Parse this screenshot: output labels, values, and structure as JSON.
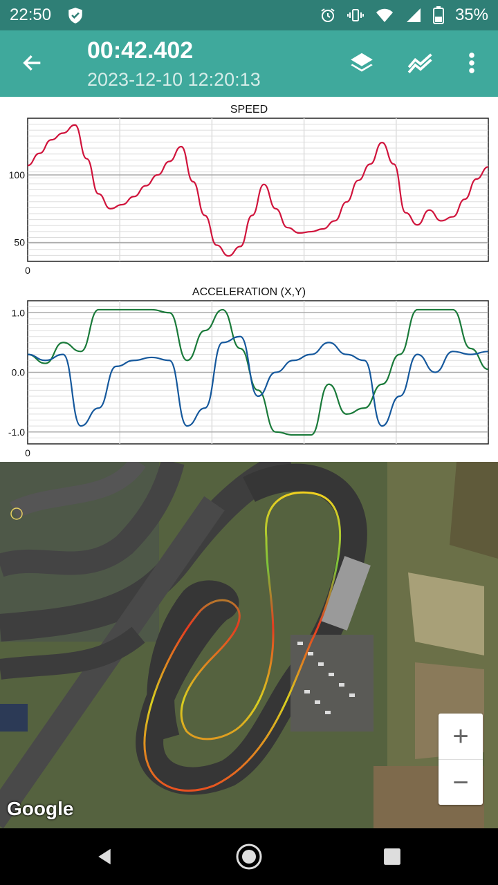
{
  "status": {
    "time": "22:50",
    "battery": "35%"
  },
  "appbar": {
    "title": "00:42.402",
    "subtitle": "2023-12-10 12:20:13"
  },
  "speed_chart": {
    "chart_data": {
      "type": "line",
      "title": "SPEED",
      "ylim": [
        36,
        142
      ],
      "yticks": [
        "100",
        "50"
      ],
      "xtick": "0",
      "series": [
        {
          "color": "#d0143c",
          "values": [
            107,
            116,
            126,
            131,
            137,
            112,
            86,
            75,
            78,
            84,
            92,
            100,
            110,
            121,
            95,
            70,
            48,
            40,
            47,
            70,
            93,
            75,
            61,
            57,
            58,
            60,
            66,
            80,
            96,
            108,
            124,
            108,
            72,
            63,
            74,
            66,
            69,
            82,
            97,
            106
          ]
        }
      ]
    }
  },
  "accel_chart": {
    "chart_data": {
      "type": "line",
      "title": "ACCELERATION (X,Y)",
      "ylim": [
        -1.2,
        1.2
      ],
      "yticks": [
        "1.0",
        "0.0",
        "-1.0"
      ],
      "xtick": "0",
      "series": [
        {
          "color": "#1a7a3a",
          "values": [
            0.3,
            0.15,
            0.5,
            0.35,
            1.05,
            1.05,
            1.05,
            1.05,
            1.0,
            0.2,
            0.7,
            1.05,
            0.4,
            -0.3,
            -1.0,
            -1.05,
            -1.05,
            -0.2,
            -0.7,
            -0.6,
            -0.2,
            0.3,
            1.05,
            1.05,
            1.05,
            0.4,
            0.05
          ]
        },
        {
          "color": "#15589c",
          "values": [
            0.3,
            0.2,
            0.3,
            -0.9,
            -0.6,
            0.1,
            0.2,
            0.25,
            0.2,
            -0.9,
            -0.6,
            0.5,
            0.6,
            -0.4,
            0.0,
            0.2,
            0.3,
            0.5,
            0.3,
            0.2,
            -0.9,
            -0.4,
            0.3,
            0.0,
            0.35,
            0.3,
            0.35
          ]
        }
      ]
    }
  },
  "map": {
    "attribution": "Google",
    "zoom_in": "+",
    "zoom_out": "−"
  }
}
